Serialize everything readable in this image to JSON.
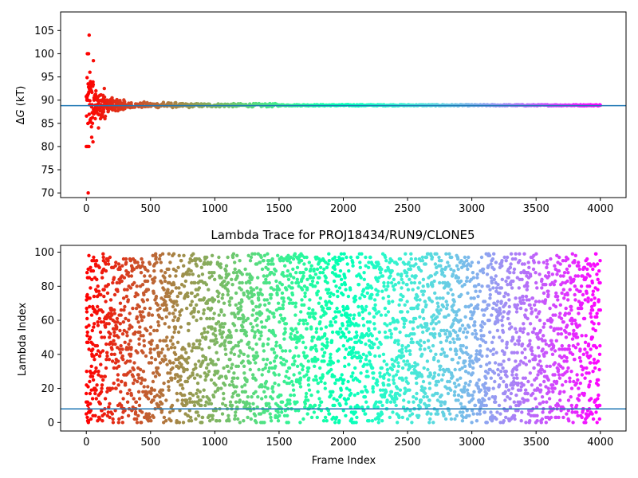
{
  "chart_data": [
    {
      "id": "dg",
      "type": "scatter",
      "title": "",
      "xlabel": "",
      "ylabel_prefix": "Δ",
      "ylabel_symbol": "G",
      "ylabel_suffix": " (kT)",
      "xlim": [
        -200,
        4200
      ],
      "ylim": [
        69,
        109
      ],
      "xticks": [
        0,
        500,
        1000,
        1500,
        2000,
        2500,
        3000,
        3500,
        4000
      ],
      "yticks": [
        70,
        75,
        80,
        85,
        90,
        95,
        100,
        105
      ],
      "reference_line": 88.8,
      "reference_line_color": "#1f77b4",
      "colormap": "rainbow (red at frame 0 to violet at frame 4000)",
      "series": [
        {
          "points": [
            [
              0,
              80
            ],
            [
              5,
              90
            ],
            [
              8,
              100
            ],
            [
              10,
              80
            ],
            [
              12,
              90
            ],
            [
              15,
              70
            ],
            [
              18,
              100
            ],
            [
              20,
              80
            ],
            [
              22,
              104
            ],
            [
              25,
              89
            ],
            [
              28,
              96
            ],
            [
              30,
              89
            ],
            [
              32,
              94
            ],
            [
              35,
              86
            ],
            [
              38,
              93
            ],
            [
              40,
              92
            ],
            [
              42,
              82
            ],
            [
              45,
              89
            ],
            [
              48,
              85
            ],
            [
              50,
              93
            ],
            [
              52,
              81
            ],
            [
              55,
              98.5
            ],
            [
              58,
              87
            ],
            [
              60,
              90
            ],
            [
              65,
              91
            ],
            [
              70,
              86
            ],
            [
              75,
              92
            ],
            [
              80,
              88
            ],
            [
              85,
              90
            ],
            [
              90,
              87
            ],
            [
              95,
              84
            ],
            [
              100,
              88
            ],
            [
              105,
              91
            ],
            [
              110,
              86
            ],
            [
              115,
              89
            ],
            [
              120,
              90
            ],
            [
              125,
              87
            ],
            [
              130,
              91
            ],
            [
              135,
              88
            ],
            [
              140,
              92.5
            ],
            [
              145,
              86
            ],
            [
              150,
              89
            ],
            [
              160,
              90
            ],
            [
              170,
              87.5
            ],
            [
              180,
              89.5
            ],
            [
              190,
              88.5
            ],
            [
              200,
              90.5
            ],
            [
              220,
              88
            ],
            [
              240,
              89.5
            ],
            [
              260,
              88.5
            ],
            [
              280,
              89.2
            ],
            [
              300,
              88.2
            ],
            [
              350,
              89.4
            ],
            [
              400,
              89.1
            ],
            [
              450,
              89.6
            ],
            [
              500,
              88.9
            ],
            [
              550,
              89.2
            ],
            [
              600,
              89.5
            ],
            [
              650,
              89.0
            ],
            [
              700,
              88.5
            ],
            [
              750,
              88.7
            ],
            [
              800,
              88.4
            ],
            [
              900,
              88.6
            ],
            [
              1000,
              88.9
            ],
            [
              1100,
              89.1
            ],
            [
              1200,
              89.0
            ],
            [
              1300,
              88.8
            ],
            [
              1400,
              89.0
            ],
            [
              1500,
              88.9
            ],
            [
              1750,
              88.9
            ],
            [
              2000,
              88.9
            ],
            [
              2500,
              88.9
            ],
            [
              3000,
              88.9
            ],
            [
              3500,
              88.9
            ],
            [
              4000,
              88.9
            ]
          ]
        }
      ]
    },
    {
      "id": "lambda",
      "type": "scatter",
      "title": "Lambda Trace for PROJ18434/RUN9/CLONE5",
      "xlabel": "Frame Index",
      "ylabel": "Lambda Index",
      "xlim": [
        -200,
        4200
      ],
      "ylim": [
        -5,
        104
      ],
      "xticks": [
        0,
        500,
        1000,
        1500,
        2000,
        2500,
        3000,
        3500,
        4000
      ],
      "yticks": [
        0,
        20,
        40,
        60,
        80,
        100
      ],
      "reference_line": 8,
      "reference_line_color": "#1f77b4",
      "colormap": "rainbow (red at frame 0 to violet at frame 4000)",
      "series": [
        {
          "frames": [
            0,
            4000
          ],
          "values_range": [
            0,
            99
          ],
          "note_points": [
            [
              0,
              5
            ],
            [
              0,
              12
            ],
            [
              2,
              22
            ],
            [
              3,
              30
            ],
            [
              5,
              47
            ],
            [
              6,
              61
            ],
            [
              8,
              75
            ],
            [
              10,
              85
            ],
            [
              15,
              90
            ],
            [
              20,
              98
            ],
            [
              30,
              50
            ],
            [
              40,
              33
            ],
            [
              50,
              68
            ],
            [
              60,
              95
            ],
            [
              80,
              40
            ],
            [
              100,
              3
            ],
            [
              120,
              20
            ],
            [
              150,
              80
            ]
          ]
        }
      ]
    }
  ]
}
